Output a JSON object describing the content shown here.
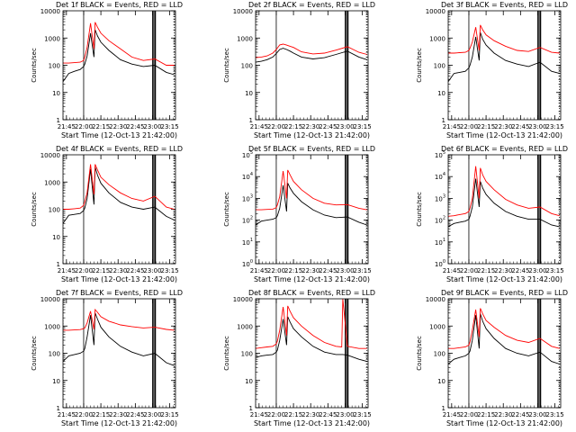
{
  "figure": {
    "common": {
      "xlabel": "Start Time (12-Oct-13 21:42:00)",
      "ylabel": "Counts/sec",
      "x_ticks": [
        "21:45",
        "22:00",
        "22:15",
        "22:30",
        "22:45",
        "23:00",
        "23:15"
      ],
      "x_tick_minutes": [
        3,
        18,
        33,
        48,
        63,
        78,
        93
      ],
      "xlim_minutes": [
        0,
        98
      ],
      "solid_vlines_minutes": [
        18
      ],
      "dotted_vlines_minutes": [
        0,
        97
      ],
      "double_vlines_minutes": [
        [
          78,
          79
        ],
        [
          80,
          80.6
        ]
      ],
      "colors": {
        "events": "#000000",
        "lld": "#ff0000"
      }
    },
    "panels": [
      {
        "title": "Det 1f BLACK = Events, RED = LLD",
        "ytick_style": "plain"
      },
      {
        "title": "Det 2f BLACK = Events, RED = LLD",
        "ytick_style": "plain"
      },
      {
        "title": "Det 3f BLACK = Events, RED = LLD",
        "ytick_style": "plain"
      },
      {
        "title": "Det 4f BLACK = Events, RED = LLD",
        "ytick_style": "plain"
      },
      {
        "title": "Det 5f BLACK = Events, RED = LLD",
        "ytick_style": "exp"
      },
      {
        "title": "Det 6f BLACK = Events, RED = LLD",
        "ytick_style": "exp"
      },
      {
        "title": "Det 7f BLACK = Events, RED = LLD",
        "ytick_style": "plain"
      },
      {
        "title": "Det 8f BLACK = Events, RED = LLD",
        "ytick_style": "plain"
      },
      {
        "title": "Det 9f BLACK = Events, RED = LLD",
        "ytick_style": "plain"
      }
    ]
  },
  "chart_data": [
    {
      "type": "line",
      "title": "Det 1f BLACK = Events, RED = LLD",
      "xlabel": "Start Time (12-Oct-13 21:42:00)",
      "ylabel": "Counts/sec",
      "yscale": "log",
      "ylim": [
        1,
        10000
      ],
      "x": [
        0,
        5,
        10,
        15,
        18,
        19,
        21,
        24,
        27,
        28,
        30,
        33,
        40,
        50,
        60,
        70,
        80,
        90,
        97
      ],
      "series": [
        {
          "name": "Events",
          "color": "#000000",
          "values": [
            25,
            50,
            60,
            70,
            90,
            110,
            220,
            1500,
            200,
            2000,
            1200,
            700,
            350,
            160,
            110,
            90,
            100,
            55,
            45
          ]
        },
        {
          "name": "LLD",
          "color": "#ff0000",
          "values": [
            120,
            120,
            125,
            130,
            150,
            200,
            450,
            3500,
            400,
            3800,
            2500,
            1500,
            800,
            400,
            200,
            150,
            170,
            100,
            100
          ]
        }
      ]
    },
    {
      "type": "line",
      "title": "Det 2f BLACK = Events, RED = LLD",
      "xlabel": "Start Time (12-Oct-13 21:42:00)",
      "ylabel": "Counts/sec",
      "yscale": "log",
      "ylim": [
        1,
        10000
      ],
      "x": [
        0,
        5,
        10,
        15,
        18,
        21,
        24,
        27,
        30,
        33,
        40,
        50,
        60,
        70,
        80,
        90,
        97
      ],
      "series": [
        {
          "name": "Events",
          "color": "#000000",
          "values": [
            130,
            140,
            160,
            200,
            270,
            380,
            420,
            380,
            330,
            280,
            200,
            170,
            190,
            250,
            330,
            200,
            160
          ]
        },
        {
          "name": "LLD",
          "color": "#ff0000",
          "values": [
            190,
            200,
            220,
            280,
            380,
            560,
            600,
            550,
            500,
            450,
            310,
            260,
            280,
            360,
            480,
            300,
            250
          ]
        }
      ]
    },
    {
      "type": "line",
      "title": "Det 3f BLACK = Events, RED = LLD",
      "xlabel": "Start Time (12-Oct-13 21:42:00)",
      "ylabel": "Counts/sec",
      "yscale": "log",
      "ylim": [
        1,
        10000
      ],
      "x": [
        0,
        5,
        10,
        15,
        18,
        19,
        21,
        24,
        27,
        28,
        30,
        33,
        40,
        50,
        60,
        70,
        80,
        90,
        97
      ],
      "series": [
        {
          "name": "Events",
          "color": "#000000",
          "values": [
            25,
            50,
            55,
            60,
            80,
            100,
            200,
            1100,
            150,
            1600,
            900,
            550,
            280,
            150,
            110,
            90,
            130,
            60,
            50
          ]
        },
        {
          "name": "LLD",
          "color": "#ff0000",
          "values": [
            280,
            280,
            290,
            300,
            350,
            420,
            700,
            2500,
            350,
            3000,
            2000,
            1300,
            800,
            500,
            350,
            320,
            450,
            300,
            280
          ]
        }
      ]
    },
    {
      "type": "line",
      "title": "Det 4f BLACK = Events, RED = LLD",
      "xlabel": "Start Time (12-Oct-13 21:42:00)",
      "ylabel": "Counts/sec",
      "yscale": "log",
      "ylim": [
        1,
        10000
      ],
      "x": [
        0,
        5,
        10,
        15,
        18,
        19,
        21,
        24,
        27,
        28,
        30,
        33,
        40,
        50,
        60,
        70,
        80,
        90,
        97
      ],
      "series": [
        {
          "name": "Events",
          "color": "#000000",
          "values": [
            30,
            60,
            65,
            70,
            90,
            110,
            250,
            3000,
            150,
            3500,
            1800,
            900,
            400,
            180,
            120,
            100,
            120,
            55,
            40
          ]
        },
        {
          "name": "LLD",
          "color": "#ff0000",
          "values": [
            100,
            100,
            105,
            110,
            140,
            190,
            400,
            4500,
            350,
            4500,
            2800,
            1500,
            800,
            400,
            250,
            200,
            300,
            120,
            100
          ]
        }
      ]
    },
    {
      "type": "line",
      "title": "Det 5f BLACK = Events, RED = LLD",
      "xlabel": "Start Time (12-Oct-13 21:42:00)",
      "ylabel": "Counts/sec",
      "yscale": "log",
      "ylim": [
        1,
        100000
      ],
      "x": [
        0,
        5,
        10,
        15,
        18,
        19,
        21,
        24,
        27,
        28,
        30,
        33,
        40,
        50,
        60,
        70,
        80,
        90,
        97
      ],
      "series": [
        {
          "name": "Events",
          "color": "#000000",
          "values": [
            60,
            90,
            100,
            110,
            130,
            160,
            350,
            4000,
            250,
            5000,
            3000,
            1700,
            700,
            300,
            170,
            130,
            140,
            80,
            60
          ]
        },
        {
          "name": "LLD",
          "color": "#ff0000",
          "values": [
            300,
            300,
            310,
            320,
            380,
            500,
            1200,
            18000,
            1000,
            20000,
            12000,
            6000,
            2500,
            1000,
            600,
            500,
            520,
            350,
            300
          ]
        }
      ]
    },
    {
      "type": "line",
      "title": "Det 6f BLACK = Events, RED = LLD",
      "xlabel": "Start Time (12-Oct-13 21:42:00)",
      "ylabel": "Counts/sec",
      "yscale": "log",
      "ylim": [
        1,
        100000
      ],
      "x": [
        0,
        5,
        10,
        15,
        18,
        19,
        21,
        24,
        27,
        28,
        30,
        33,
        40,
        50,
        60,
        70,
        80,
        90,
        97
      ],
      "series": [
        {
          "name": "Events",
          "color": "#000000",
          "values": [
            50,
            70,
            80,
            90,
            110,
            150,
            400,
            8000,
            400,
            6000,
            3000,
            1500,
            600,
            250,
            150,
            110,
            110,
            60,
            50
          ]
        },
        {
          "name": "LLD",
          "color": "#ff0000",
          "values": [
            150,
            160,
            180,
            200,
            250,
            350,
            1000,
            30000,
            1000,
            25000,
            12000,
            6000,
            2500,
            900,
            500,
            350,
            400,
            200,
            160
          ]
        }
      ]
    },
    {
      "type": "line",
      "title": "Det 7f BLACK = Events, RED = LLD",
      "xlabel": "Start Time (12-Oct-13 21:42:00)",
      "ylabel": "Counts/sec",
      "yscale": "log",
      "ylim": [
        1,
        10000
      ],
      "x": [
        0,
        5,
        10,
        15,
        18,
        19,
        21,
        24,
        27,
        28,
        30,
        33,
        40,
        50,
        60,
        70,
        80,
        90,
        97
      ],
      "series": [
        {
          "name": "Events",
          "color": "#000000",
          "values": [
            50,
            80,
            90,
            100,
            120,
            150,
            400,
            2500,
            200,
            3000,
            1800,
            900,
            400,
            180,
            110,
            80,
            100,
            45,
            35
          ]
        },
        {
          "name": "LLD",
          "color": "#ff0000",
          "values": [
            700,
            700,
            720,
            740,
            800,
            850,
            1300,
            3500,
            750,
            4000,
            3200,
            2200,
            1500,
            1100,
            950,
            850,
            900,
            750,
            700
          ]
        }
      ]
    },
    {
      "type": "line",
      "title": "Det 8f BLACK = Events, RED = LLD",
      "xlabel": "Start Time (12-Oct-13 21:42:00)",
      "ylabel": "Counts/sec",
      "yscale": "log",
      "ylim": [
        1,
        10000
      ],
      "x": [
        0,
        5,
        10,
        15,
        18,
        19,
        21,
        24,
        27,
        28,
        30,
        33,
        40,
        50,
        60,
        70,
        75,
        76,
        80,
        90,
        97
      ],
      "series": [
        {
          "name": "Events",
          "color": "#000000",
          "values": [
            70,
            80,
            85,
            90,
            110,
            130,
            300,
            1800,
            200,
            2200,
            1400,
            800,
            400,
            180,
            110,
            90,
            90,
            90,
            85,
            60,
            50
          ]
        },
        {
          "name": "LLD",
          "color": "#ff0000",
          "values": [
            150,
            160,
            170,
            180,
            220,
            280,
            700,
            5000,
            450,
            5500,
            3500,
            2000,
            1000,
            450,
            250,
            180,
            170,
            10000,
            180,
            150,
            150
          ]
        }
      ]
    },
    {
      "type": "line",
      "title": "Det 9f BLACK = Events, RED = LLD",
      "xlabel": "Start Time (12-Oct-13 21:42:00)",
      "ylabel": "Counts/sec",
      "yscale": "log",
      "ylim": [
        1,
        10000
      ],
      "x": [
        0,
        5,
        10,
        15,
        18,
        19,
        21,
        24,
        27,
        28,
        30,
        33,
        40,
        50,
        60,
        70,
        80,
        90,
        97
      ],
      "series": [
        {
          "name": "Events",
          "color": "#000000",
          "values": [
            40,
            60,
            70,
            80,
            100,
            120,
            300,
            2500,
            150,
            2800,
            1500,
            800,
            350,
            150,
            100,
            80,
            110,
            50,
            40
          ]
        },
        {
          "name": "LLD",
          "color": "#ff0000",
          "values": [
            150,
            150,
            160,
            170,
            200,
            260,
            700,
            4000,
            400,
            4500,
            2800,
            1600,
            900,
            450,
            300,
            250,
            350,
            180,
            150
          ]
        }
      ]
    }
  ]
}
